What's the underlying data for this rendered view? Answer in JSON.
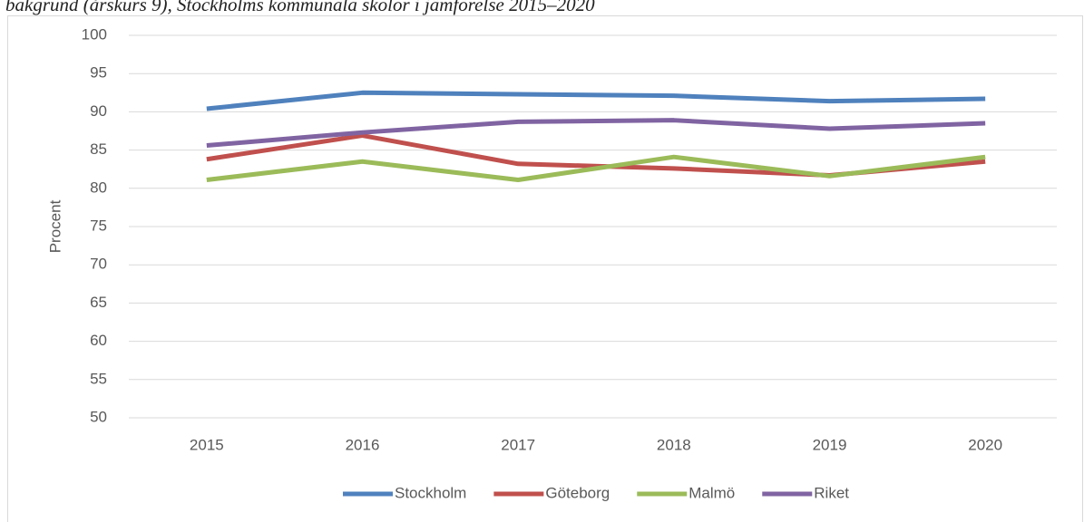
{
  "chart_data": {
    "type": "line",
    "title": "bakgrund (årskurs 9), Stockholms kommunala skolor i jämförelse 2015–2020",
    "y_label": "Procent",
    "categories": [
      "2015",
      "2016",
      "2017",
      "2018",
      "2019",
      "2020"
    ],
    "series": [
      {
        "name": "Stockholm",
        "color": "#4f81bd",
        "values": [
          90.4,
          92.5,
          92.3,
          92.1,
          91.4,
          91.7
        ]
      },
      {
        "name": "Göteborg",
        "color": "#c0504d",
        "values": [
          83.8,
          86.9,
          83.2,
          82.6,
          81.7,
          83.5
        ]
      },
      {
        "name": "Malmö",
        "color": "#9bbb59",
        "values": [
          81.1,
          83.5,
          81.1,
          84.1,
          81.6,
          84.1
        ]
      },
      {
        "name": "Riket",
        "color": "#8064a2",
        "values": [
          85.6,
          87.3,
          88.7,
          88.9,
          87.8,
          88.5
        ]
      }
    ],
    "ylim": [
      50,
      100
    ],
    "yticks": [
      50,
      55,
      60,
      65,
      70,
      75,
      80,
      85,
      90,
      95,
      100
    ],
    "grid": true,
    "legend": "bottom"
  }
}
